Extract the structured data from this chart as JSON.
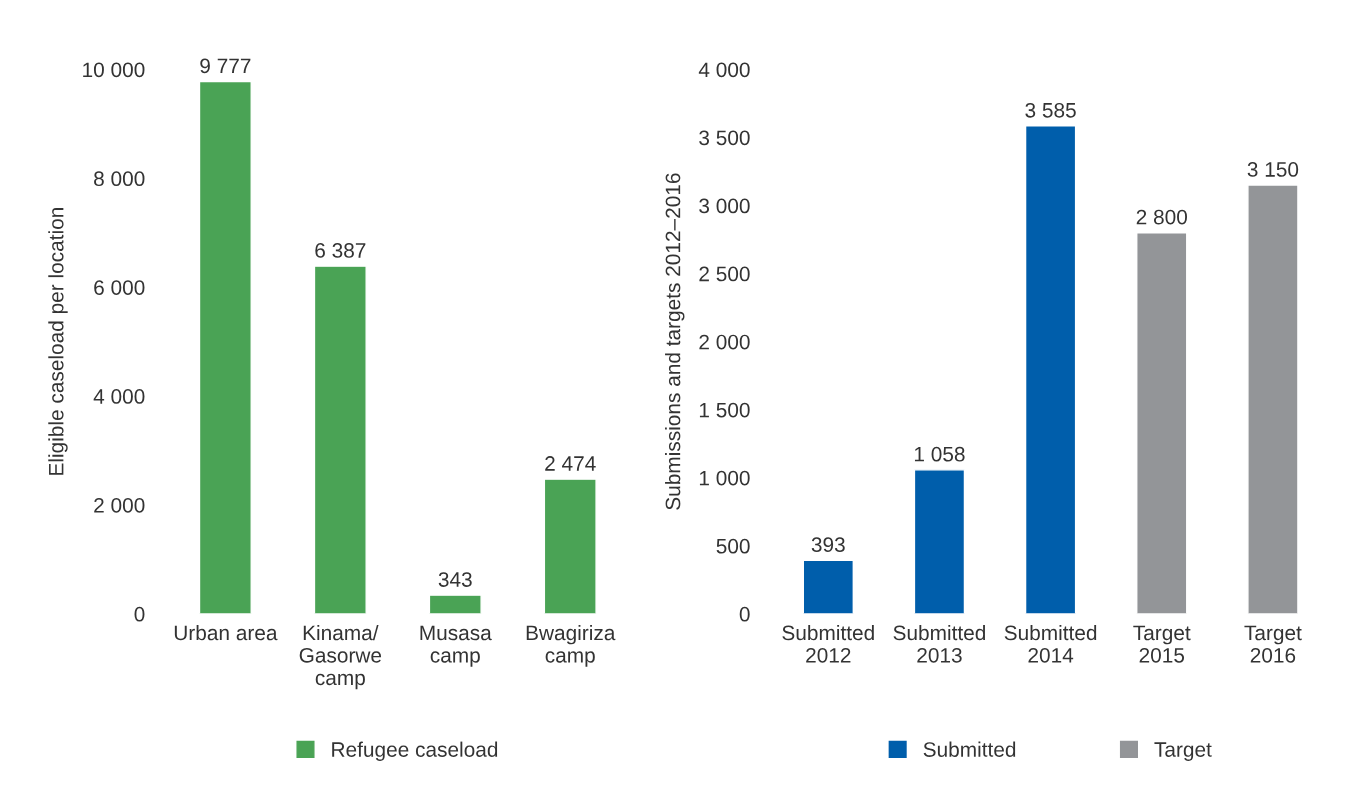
{
  "chart_data": [
    {
      "type": "bar",
      "ylabel": "Eligible caseload per location",
      "categories": [
        "Urban area",
        "Kinama/\nGasorwe\ncamp",
        "Musasa\ncamp",
        "Bwagiriza\ncamp"
      ],
      "series": [
        {
          "name": "Refugee caseload",
          "color": "#4aa355",
          "values": [
            9777,
            6387,
            343,
            2474
          ],
          "value_labels": [
            "9 777",
            "6 387",
            "343",
            "2 474"
          ]
        }
      ],
      "ylim": [
        0,
        10000
      ],
      "yticks": [
        0,
        {
          "value": 2000,
          "label": "2 000"
        },
        {
          "value": 4000,
          "label": "4 000"
        },
        {
          "value": 6000,
          "label": "6 000"
        },
        {
          "value": 8000,
          "label": "8 000"
        },
        {
          "value": 10000,
          "label": "10 000"
        }
      ],
      "grid": false,
      "legend": "bottom"
    },
    {
      "type": "bar",
      "ylabel": "Submissions and targets 2012–2016",
      "categories": [
        "Submitted\n2012",
        "Submitted\n2013",
        "Submitted\n2014",
        "Target\n2015",
        "Target\n2016"
      ],
      "series": [
        {
          "name": "Submitted",
          "color": "#005eab",
          "values": [
            393,
            1058,
            3585,
            null,
            null
          ],
          "value_labels": [
            "393",
            "1 058",
            "3 585",
            null,
            null
          ]
        },
        {
          "name": "Target",
          "color": "#939598",
          "values": [
            null,
            null,
            null,
            2800,
            3150
          ],
          "value_labels": [
            null,
            null,
            null,
            "2 800",
            "3 150"
          ]
        }
      ],
      "ylim": [
        0,
        4000
      ],
      "yticks": [
        0,
        500,
        {
          "value": 1000,
          "label": "1 000"
        },
        {
          "value": 1500,
          "label": "1 500"
        },
        {
          "value": 2000,
          "label": "2 000"
        },
        {
          "value": 2500,
          "label": "2 500"
        },
        {
          "value": 3000,
          "label": "3 000"
        },
        {
          "value": 3500,
          "label": "3 500"
        },
        {
          "value": 4000,
          "label": "4 000"
        }
      ],
      "grid": false,
      "legend": "bottom"
    }
  ]
}
